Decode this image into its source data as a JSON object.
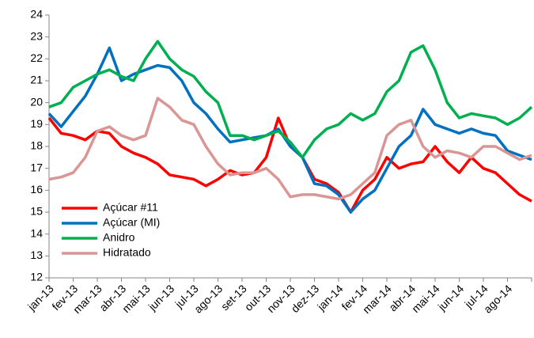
{
  "chart_data": {
    "type": "line",
    "categories": [
      "jan-13",
      null,
      "fev-13",
      null,
      "mar-13",
      null,
      "abr-13",
      null,
      "mai-13",
      null,
      "jun-13",
      null,
      "jul-13",
      null,
      "ago-13",
      null,
      "set-13",
      null,
      "out-13",
      null,
      "nov-13",
      null,
      "dez-13",
      null,
      "jan-14",
      null,
      "fev-14",
      null,
      "mar-14",
      null,
      "abr-14",
      null,
      "mai-14",
      null,
      "jun-14",
      null,
      "jul-14",
      null,
      "ago-14",
      null,
      null
    ],
    "series": [
      {
        "name": "Açúcar #11",
        "color": "#ff0000",
        "values": [
          19.3,
          18.6,
          18.5,
          18.3,
          18.7,
          18.6,
          18.0,
          17.7,
          17.5,
          17.2,
          16.7,
          16.6,
          16.5,
          16.2,
          16.5,
          16.9,
          16.7,
          16.8,
          17.5,
          19.3,
          18.0,
          17.5,
          16.5,
          16.3,
          15.9,
          15.0,
          16.0,
          16.5,
          17.5,
          17.0,
          17.2,
          17.3,
          18.0,
          17.3,
          16.8,
          17.5,
          17.0,
          16.8,
          16.3,
          15.8,
          15.5
        ]
      },
      {
        "name": "Açúcar (MI)",
        "color": "#0070c0",
        "values": [
          19.5,
          18.9,
          19.6,
          20.3,
          21.3,
          22.5,
          21.0,
          21.3,
          21.5,
          21.7,
          21.6,
          21.0,
          20.0,
          19.5,
          18.8,
          18.2,
          18.3,
          18.4,
          18.5,
          18.8,
          18.0,
          17.5,
          16.3,
          16.2,
          15.8,
          15.0,
          15.6,
          16.0,
          17.0,
          18.0,
          18.5,
          19.7,
          19.0,
          18.8,
          18.6,
          18.8,
          18.6,
          18.5,
          17.8,
          17.6,
          17.4
        ]
      },
      {
        "name": "Anidro",
        "color": "#00b050",
        "values": [
          19.8,
          20.0,
          20.7,
          21.0,
          21.3,
          21.5,
          21.2,
          21.0,
          22.0,
          22.8,
          22.0,
          21.5,
          21.2,
          20.5,
          20.0,
          18.5,
          18.5,
          18.3,
          18.5,
          18.7,
          18.2,
          17.5,
          18.3,
          18.8,
          19.0,
          19.5,
          19.2,
          19.5,
          20.5,
          21.0,
          22.3,
          22.6,
          21.5,
          20.0,
          19.3,
          19.5,
          19.4,
          19.3,
          19.0,
          19.3,
          19.8
        ]
      },
      {
        "name": "Hidratado",
        "color": "#d99694",
        "values": [
          16.5,
          16.6,
          16.8,
          17.5,
          18.7,
          18.9,
          18.5,
          18.3,
          18.5,
          20.2,
          19.8,
          19.2,
          19.0,
          18.0,
          17.2,
          16.7,
          16.8,
          16.8,
          17.0,
          16.5,
          15.7,
          15.8,
          15.8,
          15.7,
          15.6,
          15.8,
          16.3,
          16.8,
          18.5,
          19.0,
          19.2,
          18.0,
          17.5,
          17.8,
          17.7,
          17.5,
          18.0,
          18.0,
          17.7,
          17.4,
          17.6
        ]
      }
    ],
    "ylim": [
      12,
      24
    ],
    "yticks": [
      12,
      13,
      14,
      15,
      16,
      17,
      18,
      19,
      20,
      21,
      22,
      23,
      24
    ],
    "grid": false,
    "legend": "lower-left"
  }
}
